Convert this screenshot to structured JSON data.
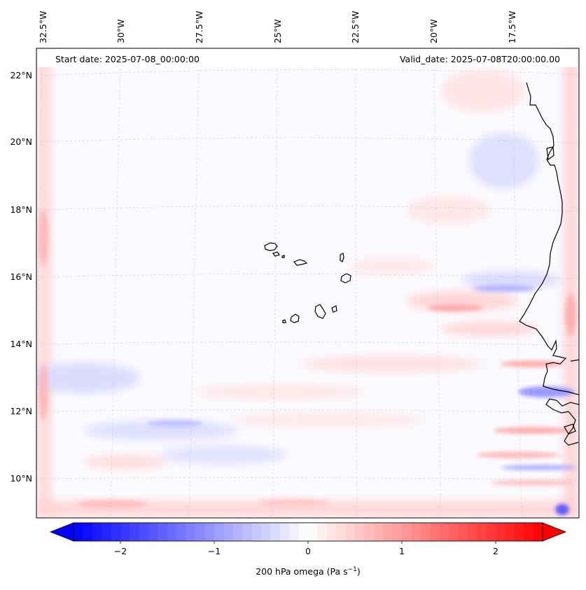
{
  "header": {
    "start_label": "Start date: 2025-07-08_00:00:00",
    "valid_label": "Valid_date: 2025-07-08T20:00:00.00"
  },
  "axes": {
    "lon_labels": [
      "32.5°W",
      "30°W",
      "27.5°W",
      "25°W",
      "22.5°W",
      "20°W",
      "17.5°W"
    ],
    "lat_labels": [
      "22°N",
      "20°N",
      "18°N",
      "16°N",
      "14°N",
      "12°N",
      "10°N"
    ]
  },
  "colorbar": {
    "ticks": [
      "−2",
      "−1",
      "0",
      "1",
      "2"
    ],
    "label_main": "200 hPa omega (Pa s",
    "label_sup": "−1",
    "label_end": ")",
    "min": -2.5,
    "max": 2.5,
    "colors": {
      "negative": "#0000ff",
      "zero": "#ffffff",
      "positive": "#ff0000"
    }
  },
  "chart_data": {
    "type": "heatmap",
    "title": "",
    "variable": "200 hPa omega",
    "units": "Pa s^-1",
    "x_range_lon": [
      -33.0,
      -14.8
    ],
    "y_range_lat": [
      8.9,
      22.8
    ],
    "value_range": [
      -2.5,
      2.5
    ],
    "field_summary": "Near-zero omega over most of the eastern Atlantic; banded weak positive/negative anomalies near the West African coast (Senegal/Guinea) and along the domain edges."
  }
}
